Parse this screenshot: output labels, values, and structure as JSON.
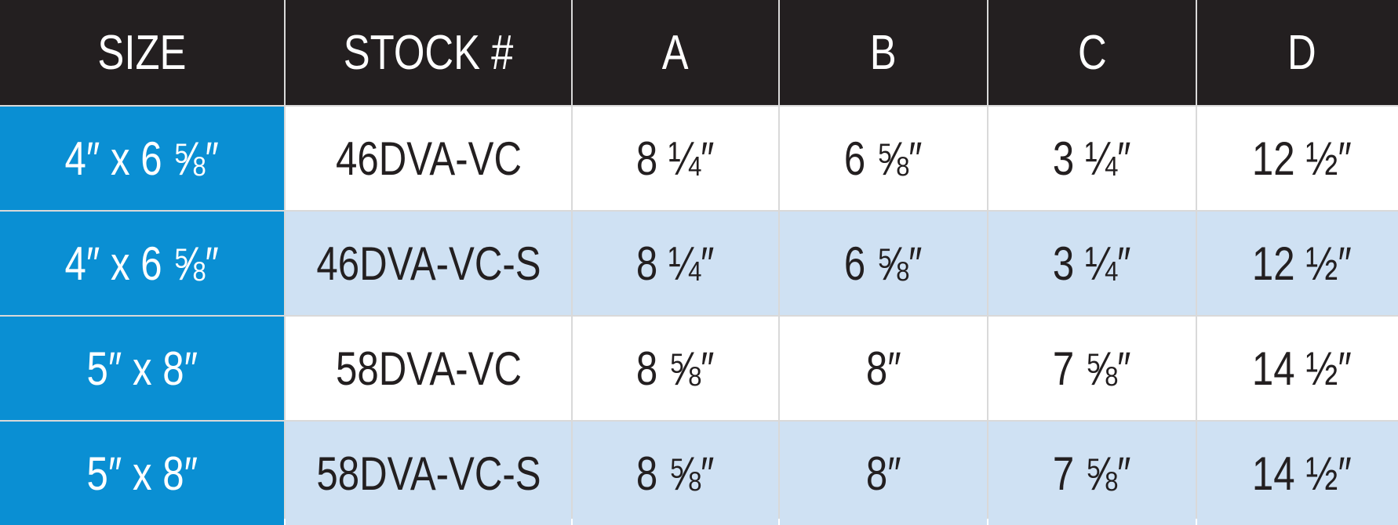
{
  "header": {
    "size": "SIZE",
    "stock": "STOCK #",
    "a": "A",
    "b": "B",
    "c": "C",
    "d": "D"
  },
  "rows": [
    {
      "size": "4″ x 6 ⅝″",
      "stock": "46DVA-VC",
      "a": "8 ¼″",
      "b": "6 ⅝″",
      "c": "3 ¼″",
      "d": "12 ½″"
    },
    {
      "size": "4″ x 6 ⅝″",
      "stock": "46DVA-VC-S",
      "a": "8 ¼″",
      "b": "6 ⅝″",
      "c": "3 ¼″",
      "d": "12 ½″"
    },
    {
      "size": "5″ x 8″",
      "stock": "58DVA-VC",
      "a": "8 ⅝″",
      "b": "8″",
      "c": "7 ⅝″",
      "d": "14 ½″"
    },
    {
      "size": "5″ x 8″",
      "stock": "58DVA-VC-S",
      "a": "8 ⅝″",
      "b": "8″",
      "c": "7 ⅝″",
      "d": "14 ½″"
    }
  ],
  "colors": {
    "header_bg": "#231f20",
    "size_col_bg": "#0a8fd3",
    "row_alt_bg": "#cfe1f3",
    "row_bg": "#ffffff"
  }
}
